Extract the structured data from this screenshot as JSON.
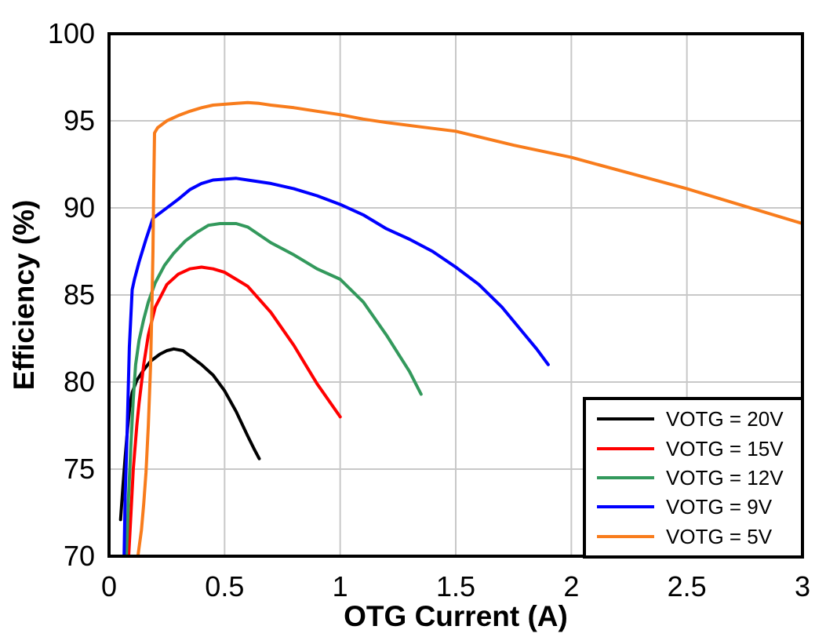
{
  "chart_data": {
    "type": "line",
    "title": "",
    "xlabel": "OTG Current (A)",
    "ylabel": "Efficiency (%)",
    "xlim": [
      0,
      3
    ],
    "ylim": [
      70,
      100
    ],
    "xticks": [
      0,
      0.5,
      1,
      1.5,
      2,
      2.5,
      3
    ],
    "yticks": [
      70,
      75,
      80,
      85,
      90,
      95,
      100
    ],
    "grid": true,
    "legend_position": "lower right",
    "series": [
      {
        "name": "VOTG = 20V",
        "color": "#000000",
        "points": [
          [
            0.05,
            72.1
          ],
          [
            0.06,
            74.0
          ],
          [
            0.07,
            75.7
          ],
          [
            0.08,
            77.3
          ],
          [
            0.09,
            78.6
          ],
          [
            0.1,
            79.4
          ],
          [
            0.12,
            80.1
          ],
          [
            0.15,
            80.7
          ],
          [
            0.18,
            81.2
          ],
          [
            0.22,
            81.6
          ],
          [
            0.25,
            81.8
          ],
          [
            0.28,
            81.9
          ],
          [
            0.32,
            81.8
          ],
          [
            0.36,
            81.4
          ],
          [
            0.4,
            81.0
          ],
          [
            0.45,
            80.4
          ],
          [
            0.5,
            79.5
          ],
          [
            0.55,
            78.3
          ],
          [
            0.6,
            76.9
          ],
          [
            0.63,
            76.1
          ],
          [
            0.65,
            75.6
          ]
        ]
      },
      {
        "name": "VOTG = 15V",
        "color": "#ff0000",
        "points": [
          [
            0.085,
            70.0
          ],
          [
            0.095,
            72.5
          ],
          [
            0.105,
            75.0
          ],
          [
            0.12,
            77.5
          ],
          [
            0.13,
            78.8
          ],
          [
            0.15,
            81.0
          ],
          [
            0.17,
            82.7
          ],
          [
            0.2,
            84.3
          ],
          [
            0.25,
            85.6
          ],
          [
            0.3,
            86.2
          ],
          [
            0.35,
            86.5
          ],
          [
            0.4,
            86.6
          ],
          [
            0.45,
            86.5
          ],
          [
            0.5,
            86.3
          ],
          [
            0.55,
            85.9
          ],
          [
            0.6,
            85.5
          ],
          [
            0.7,
            84.0
          ],
          [
            0.8,
            82.1
          ],
          [
            0.9,
            79.9
          ],
          [
            1.0,
            78.0
          ]
        ]
      },
      {
        "name": "VOTG = 12V",
        "color": "#33995c",
        "points": [
          [
            0.075,
            70.0
          ],
          [
            0.085,
            73.5
          ],
          [
            0.095,
            76.5
          ],
          [
            0.105,
            79.0
          ],
          [
            0.115,
            81.0
          ],
          [
            0.13,
            82.4
          ],
          [
            0.15,
            83.6
          ],
          [
            0.17,
            84.6
          ],
          [
            0.2,
            85.7
          ],
          [
            0.24,
            86.7
          ],
          [
            0.28,
            87.4
          ],
          [
            0.33,
            88.1
          ],
          [
            0.38,
            88.6
          ],
          [
            0.43,
            89.0
          ],
          [
            0.48,
            89.1
          ],
          [
            0.55,
            89.1
          ],
          [
            0.6,
            88.9
          ],
          [
            0.7,
            88.0
          ],
          [
            0.8,
            87.3
          ],
          [
            0.9,
            86.5
          ],
          [
            1.0,
            85.9
          ],
          [
            1.1,
            84.6
          ],
          [
            1.2,
            82.7
          ],
          [
            1.3,
            80.6
          ],
          [
            1.35,
            79.3
          ]
        ]
      },
      {
        "name": "VOTG = 9V",
        "color": "#0000ff",
        "points": [
          [
            0.065,
            70.0
          ],
          [
            0.07,
            73.5
          ],
          [
            0.078,
            77.0
          ],
          [
            0.088,
            82.0
          ],
          [
            0.1,
            85.3
          ],
          [
            0.11,
            85.9
          ],
          [
            0.13,
            86.9
          ],
          [
            0.16,
            88.2
          ],
          [
            0.19,
            89.4
          ],
          [
            0.22,
            89.7
          ],
          [
            0.26,
            90.1
          ],
          [
            0.3,
            90.5
          ],
          [
            0.35,
            91.05
          ],
          [
            0.4,
            91.4
          ],
          [
            0.45,
            91.6
          ],
          [
            0.5,
            91.65
          ],
          [
            0.55,
            91.7
          ],
          [
            0.6,
            91.6
          ],
          [
            0.7,
            91.4
          ],
          [
            0.8,
            91.1
          ],
          [
            0.9,
            90.7
          ],
          [
            1.0,
            90.2
          ],
          [
            1.1,
            89.6
          ],
          [
            1.2,
            88.8
          ],
          [
            1.3,
            88.2
          ],
          [
            1.4,
            87.5
          ],
          [
            1.5,
            86.6
          ],
          [
            1.6,
            85.6
          ],
          [
            1.7,
            84.3
          ],
          [
            1.8,
            82.7
          ],
          [
            1.85,
            81.9
          ],
          [
            1.9,
            81.0
          ]
        ]
      },
      {
        "name": "VOTG = 5V",
        "color": "#f87c1c",
        "points": [
          [
            0.125,
            70.0
          ],
          [
            0.14,
            71.5
          ],
          [
            0.15,
            73.0
          ],
          [
            0.16,
            74.8
          ],
          [
            0.17,
            77.5
          ],
          [
            0.18,
            81.0
          ],
          [
            0.185,
            84.0
          ],
          [
            0.19,
            87.5
          ],
          [
            0.193,
            91.0
          ],
          [
            0.197,
            94.3
          ],
          [
            0.21,
            94.6
          ],
          [
            0.25,
            95.0
          ],
          [
            0.3,
            95.3
          ],
          [
            0.35,
            95.55
          ],
          [
            0.4,
            95.75
          ],
          [
            0.45,
            95.9
          ],
          [
            0.5,
            95.95
          ],
          [
            0.55,
            96.0
          ],
          [
            0.6,
            96.05
          ],
          [
            0.65,
            96.0
          ],
          [
            0.7,
            95.9
          ],
          [
            0.8,
            95.75
          ],
          [
            0.9,
            95.55
          ],
          [
            1.0,
            95.35
          ],
          [
            1.1,
            95.1
          ],
          [
            1.2,
            94.9
          ],
          [
            1.35,
            94.65
          ],
          [
            1.5,
            94.4
          ],
          [
            1.75,
            93.6
          ],
          [
            2.0,
            92.9
          ],
          [
            2.25,
            92.0
          ],
          [
            2.5,
            91.1
          ],
          [
            2.75,
            90.1
          ],
          [
            3.0,
            89.1
          ]
        ]
      }
    ]
  },
  "colors": {
    "background": "#ffffff",
    "grid": "#c8c8c8",
    "axis": "#000000",
    "legend_border": "#000000"
  },
  "line_width": 4
}
